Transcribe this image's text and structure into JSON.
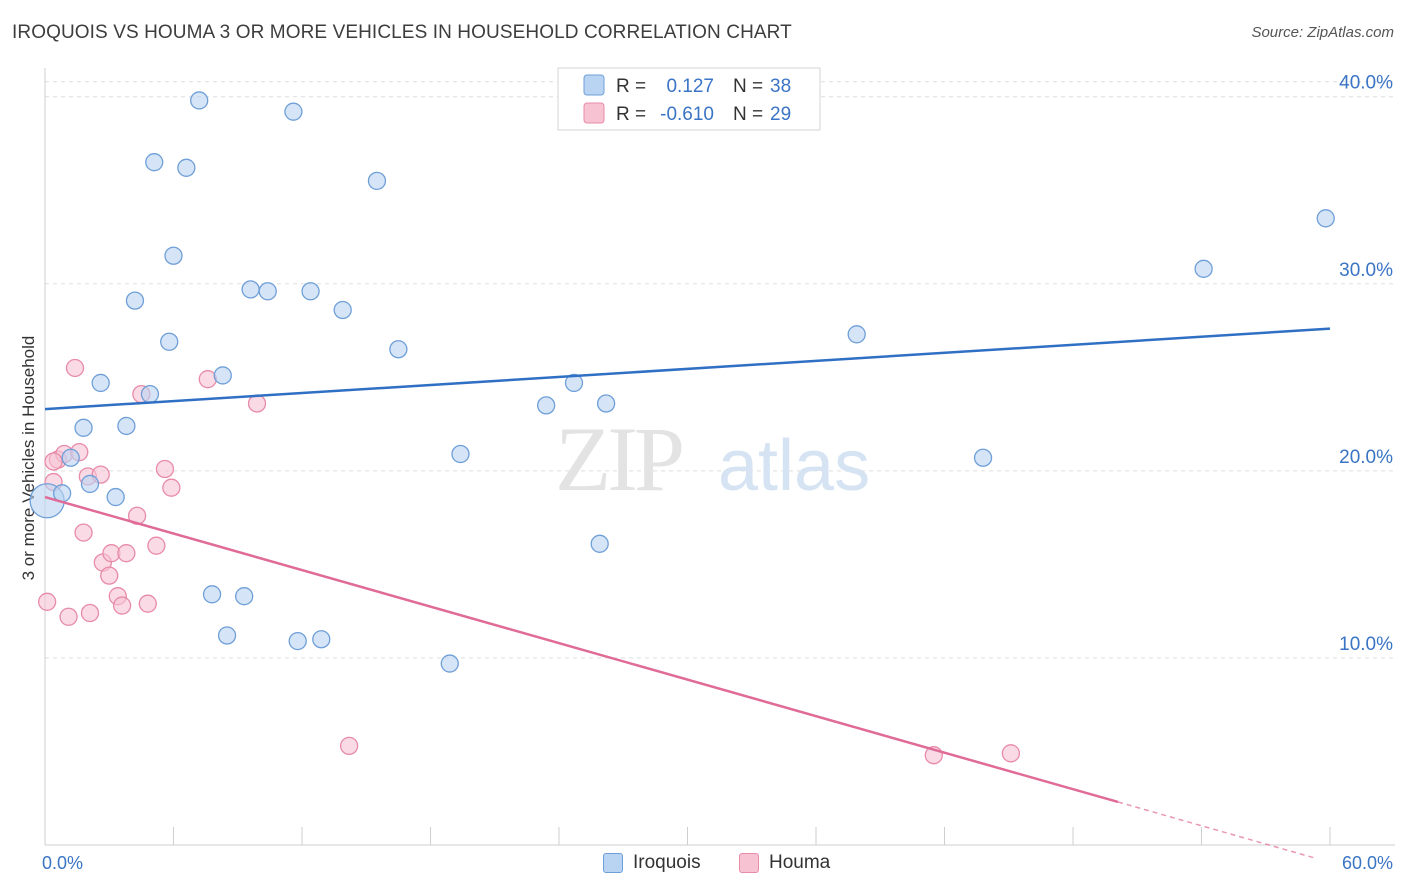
{
  "title": "IROQUOIS VS HOUMA 3 OR MORE VEHICLES IN HOUSEHOLD CORRELATION CHART",
  "source": "Source: ZipAtlas.com",
  "watermark": {
    "zip": "ZIP",
    "atlas": "atlas"
  },
  "colors": {
    "iroquois_fill": "#b9d3f2",
    "iroquois_stroke": "#6f9fd8",
    "iroquois_line": "#2f6fc4",
    "houma_fill": "#f7c3d3",
    "houma_stroke": "#e88ba8",
    "houma_line": "#e06b96",
    "tick": "#3a74c4",
    "grid": "#dddddd"
  },
  "legend": {
    "rows": [
      {
        "r_label": "R =",
        "r_value": "0.127",
        "n_label": "N =",
        "n_value": "38"
      },
      {
        "r_label": "R =",
        "r_value": "-0.610",
        "n_label": "N =",
        "n_value": "29"
      }
    ]
  },
  "bottom_legend": {
    "iroquois": "Iroquois",
    "houma": "Houma"
  },
  "chart_data": {
    "type": "scatter",
    "title": "IROQUOIS VS HOUMA 3 OR MORE VEHICLES IN HOUSEHOLD CORRELATION CHART",
    "xlabel": "",
    "ylabel": "3 or more Vehicles in Household",
    "xlim": [
      0,
      60
    ],
    "ylim": [
      0,
      41
    ],
    "x_tick_labels": [
      "0.0%",
      "60.0%"
    ],
    "y_ticks": [
      10,
      20,
      30,
      40
    ],
    "y_tick_labels": [
      "10.0%",
      "20.0%",
      "30.0%",
      "40.0%"
    ],
    "grid": true,
    "legend_position": "top-center",
    "series": [
      {
        "name": "Iroquois",
        "r": 0.127,
        "n": 38,
        "trend": {
          "x": [
            0,
            60
          ],
          "y": [
            23.3,
            27.6
          ]
        },
        "points": [
          {
            "x": 0.1,
            "y": 18.4,
            "big": true
          },
          {
            "x": 0.8,
            "y": 18.8
          },
          {
            "x": 1.2,
            "y": 20.7
          },
          {
            "x": 1.8,
            "y": 22.3
          },
          {
            "x": 2.1,
            "y": 19.3
          },
          {
            "x": 2.6,
            "y": 24.7
          },
          {
            "x": 3.3,
            "y": 18.6
          },
          {
            "x": 3.8,
            "y": 22.4
          },
          {
            "x": 4.2,
            "y": 29.1
          },
          {
            "x": 4.9,
            "y": 24.1
          },
          {
            "x": 5.1,
            "y": 36.5
          },
          {
            "x": 5.8,
            "y": 26.9
          },
          {
            "x": 6.0,
            "y": 31.5
          },
          {
            "x": 6.6,
            "y": 36.2
          },
          {
            "x": 7.2,
            "y": 39.8
          },
          {
            "x": 7.8,
            "y": 13.4
          },
          {
            "x": 8.3,
            "y": 25.1
          },
          {
            "x": 8.5,
            "y": 11.2
          },
          {
            "x": 9.3,
            "y": 13.3
          },
          {
            "x": 9.6,
            "y": 29.7
          },
          {
            "x": 10.4,
            "y": 29.6
          },
          {
            "x": 11.6,
            "y": 39.2
          },
          {
            "x": 11.8,
            "y": 10.9
          },
          {
            "x": 12.4,
            "y": 29.6
          },
          {
            "x": 12.9,
            "y": 11.0
          },
          {
            "x": 13.9,
            "y": 28.6
          },
          {
            "x": 15.5,
            "y": 35.5
          },
          {
            "x": 16.5,
            "y": 26.5
          },
          {
            "x": 18.9,
            "y": 9.7
          },
          {
            "x": 19.4,
            "y": 20.9
          },
          {
            "x": 23.4,
            "y": 23.5
          },
          {
            "x": 24.7,
            "y": 24.7
          },
          {
            "x": 25.9,
            "y": 16.1
          },
          {
            "x": 26.2,
            "y": 23.6
          },
          {
            "x": 37.9,
            "y": 27.3
          },
          {
            "x": 43.8,
            "y": 20.7
          },
          {
            "x": 54.1,
            "y": 30.8
          },
          {
            "x": 59.8,
            "y": 33.5
          }
        ]
      },
      {
        "name": "Houma",
        "r": -0.61,
        "n": 29,
        "trend": {
          "x": [
            0,
            50.1
          ],
          "y": [
            18.6,
            2.3
          ]
        },
        "trend_extension": {
          "x": [
            50.1,
            59.3
          ],
          "y": [
            2.3,
            -0.7
          ]
        },
        "points": [
          {
            "x": 0.1,
            "y": 13.0
          },
          {
            "x": 0.4,
            "y": 19.4
          },
          {
            "x": 0.6,
            "y": 20.6
          },
          {
            "x": 0.9,
            "y": 20.9
          },
          {
            "x": 1.1,
            "y": 12.2
          },
          {
            "x": 1.4,
            "y": 25.5
          },
          {
            "x": 1.6,
            "y": 21.0
          },
          {
            "x": 1.8,
            "y": 16.7
          },
          {
            "x": 2.0,
            "y": 19.7
          },
          {
            "x": 2.1,
            "y": 12.4
          },
          {
            "x": 2.6,
            "y": 19.8
          },
          {
            "x": 2.7,
            "y": 15.1
          },
          {
            "x": 3.0,
            "y": 14.4
          },
          {
            "x": 3.1,
            "y": 15.6
          },
          {
            "x": 3.4,
            "y": 13.3
          },
          {
            "x": 3.6,
            "y": 12.8
          },
          {
            "x": 3.8,
            "y": 15.6
          },
          {
            "x": 4.3,
            "y": 17.6
          },
          {
            "x": 4.5,
            "y": 24.1
          },
          {
            "x": 4.8,
            "y": 12.9
          },
          {
            "x": 5.2,
            "y": 16.0
          },
          {
            "x": 5.6,
            "y": 20.1
          },
          {
            "x": 5.9,
            "y": 19.1
          },
          {
            "x": 7.6,
            "y": 24.9
          },
          {
            "x": 9.9,
            "y": 23.6
          },
          {
            "x": 14.2,
            "y": 5.3
          },
          {
            "x": 41.5,
            "y": 4.8
          },
          {
            "x": 45.1,
            "y": 4.9
          },
          {
            "x": 0.4,
            "y": 20.5
          }
        ]
      }
    ]
  }
}
